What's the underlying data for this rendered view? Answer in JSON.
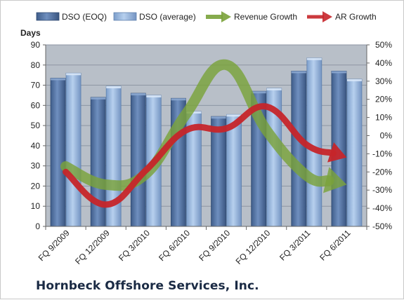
{
  "company": "Hornbeck Offshore Services, Inc.",
  "colors": {
    "dso_eoq": "#4f6f9e",
    "dso_avg": "#8fb1dc",
    "revenue_growth": "#7aa23a",
    "ar_growth": "#c6252a",
    "plot_bg": "#b8bfc8"
  },
  "chart_data": {
    "type": "bar",
    "title": "",
    "ylabel": "Days",
    "xlabel": "",
    "legend_position": "top",
    "grid": true,
    "ylim": [
      0,
      90
    ],
    "y_ticks": [
      "0",
      "10",
      "20",
      "30",
      "40",
      "50",
      "60",
      "70",
      "80",
      "90"
    ],
    "y2lim": [
      -50,
      50
    ],
    "y2_ticks": [
      "-50%",
      "-40%",
      "-30%",
      "-20%",
      "-10%",
      "0%",
      "10%",
      "20%",
      "30%",
      "40%",
      "50%"
    ],
    "categories": [
      "FQ 9/2009",
      "FQ 12/2009",
      "FQ 3/2010",
      "FQ 6/2010",
      "FQ 9/2010",
      "FQ 12/2010",
      "FQ 3/2011",
      "FQ 6/2011"
    ],
    "series": [
      {
        "name": "DSO (EOQ)",
        "type": "bar",
        "axis": "left",
        "values": [
          73.5,
          64,
          66,
          63.5,
          54.5,
          67,
          77,
          77
        ]
      },
      {
        "name": "DSO (average)",
        "type": "bar",
        "axis": "left",
        "values": [
          76,
          69.5,
          65,
          57,
          55.5,
          68.5,
          83.5,
          73
        ]
      },
      {
        "name": "Revenue Growth",
        "type": "line",
        "axis": "right",
        "values": [
          -17,
          -27,
          -21,
          12,
          39,
          3,
          -22,
          -27
        ]
      },
      {
        "name": "AR Growth",
        "type": "line",
        "axis": "right",
        "values": [
          -20,
          -38,
          -19,
          3,
          4,
          16,
          -5,
          -12
        ]
      }
    ]
  }
}
